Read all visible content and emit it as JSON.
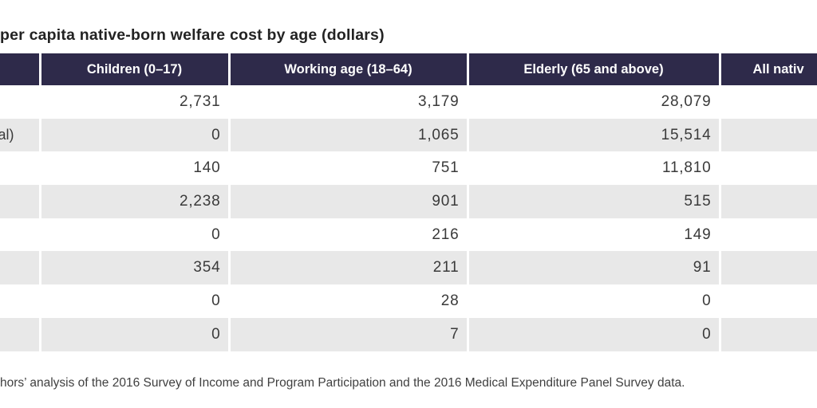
{
  "title": "per capita native-born welfare cost by age (dollars)",
  "colors": {
    "header_bg": "#2e2a4a",
    "header_text": "#ffffff",
    "row_alt_bg": "#e8e8e8",
    "row_bg": "#ffffff",
    "body_text": "#3a3a3a"
  },
  "table": {
    "columns": [
      {
        "label": ""
      },
      {
        "label": "Children (0–17)"
      },
      {
        "label": "Working age (18–64)"
      },
      {
        "label": "Elderly (65 and above)"
      },
      {
        "label": "All nativ"
      }
    ],
    "rows": [
      {
        "label_fragment": "",
        "children": "2,731",
        "working_age": "3,179",
        "elderly": "28,079",
        "all_native": ""
      },
      {
        "label_fragment": "al)",
        "children": "0",
        "working_age": "1,065",
        "elderly": "15,514",
        "all_native": ""
      },
      {
        "label_fragment": "",
        "children": "140",
        "working_age": "751",
        "elderly": "11,810",
        "all_native": ""
      },
      {
        "label_fragment": "",
        "children": "2,238",
        "working_age": "901",
        "elderly": "515",
        "all_native": ""
      },
      {
        "label_fragment": "",
        "children": "0",
        "working_age": "216",
        "elderly": "149",
        "all_native": ""
      },
      {
        "label_fragment": "",
        "children": "354",
        "working_age": "211",
        "elderly": "91",
        "all_native": ""
      },
      {
        "label_fragment": "",
        "children": "0",
        "working_age": "28",
        "elderly": "0",
        "all_native": ""
      },
      {
        "label_fragment": "",
        "children": "0",
        "working_age": "7",
        "elderly": "0",
        "all_native": ""
      }
    ]
  },
  "footer": {
    "source_note": "hors’ analysis of the 2016 Survey of Income and Program Participation and the 2016 Medical Expenditure Panel Survey data."
  }
}
